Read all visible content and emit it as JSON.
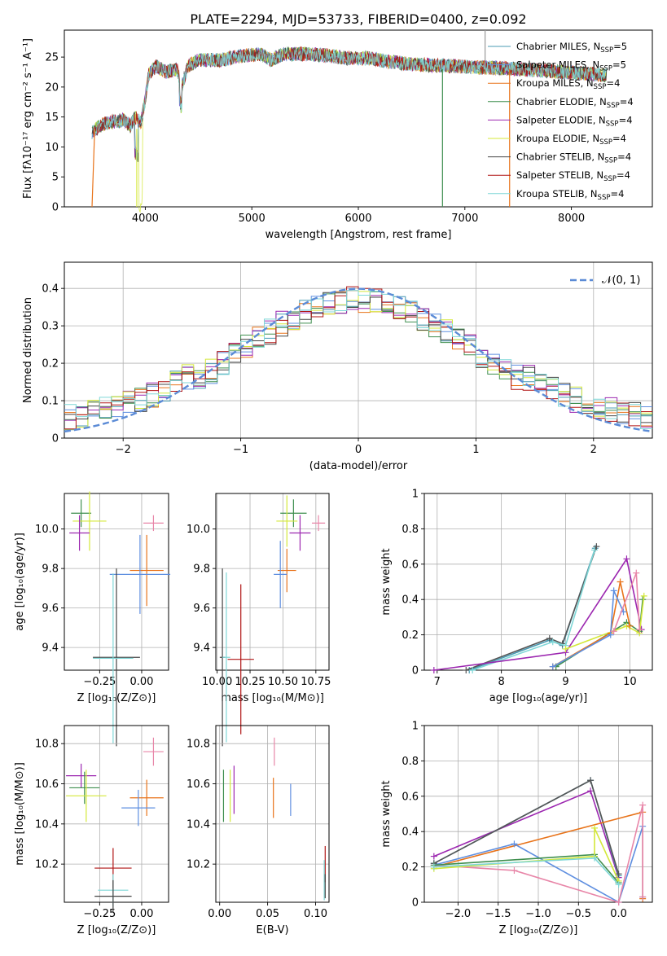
{
  "chart_data": [
    {
      "id": "spectrum",
      "type": "line",
      "title": "PLATE=2294, MJD=53733, FIBERID=0400, z=0.092",
      "xlabel": "wavelength [Angstrom, rest frame]",
      "ylabel": "Flux [fλ10⁻¹⁷ erg cm⁻² s⁻¹ A⁻¹]",
      "xlim": [
        3240,
        8760
      ],
      "ylim": [
        0,
        29.5
      ],
      "xticks": [
        4000,
        5000,
        6000,
        7000,
        8000
      ],
      "yticks": [
        0,
        5,
        10,
        15,
        20,
        25
      ],
      "legend_position": "upper right",
      "legend": [
        {
          "label": "Chabrier MILES, N_SSP=5",
          "color": "#4a9bb3"
        },
        {
          "label": "Salpeter MILES, N_SSP=5",
          "color": "#5f8fe0"
        },
        {
          "label": "Kroupa MILES, N_SSP=4",
          "color": "#e8731a"
        },
        {
          "label": "Chabrier ELODIE, N_SSP=4",
          "color": "#3f8f4f"
        },
        {
          "label": "Salpeter ELODIE, N_SSP=4",
          "color": "#9c27b0"
        },
        {
          "label": "Kroupa ELODIE, N_SSP=4",
          "color": "#d4e83a"
        },
        {
          "label": "Chabrier STELIB, N_SSP=4",
          "color": "#444444"
        },
        {
          "label": "Salpeter STELIB, N_SSP=4",
          "color": "#b01515"
        },
        {
          "label": "Kroupa STELIB, N_SSP=4",
          "color": "#7fd7d7"
        }
      ],
      "shape_points": [
        [
          3500,
          12.5
        ],
        [
          3600,
          13.8
        ],
        [
          3700,
          14.2
        ],
        [
          3800,
          14.5
        ],
        [
          3860,
          13.5
        ],
        [
          3900,
          15
        ],
        [
          3960,
          14
        ],
        [
          4000,
          18
        ],
        [
          4030,
          22
        ],
        [
          4100,
          23.5
        ],
        [
          4200,
          22.5
        ],
        [
          4300,
          23
        ],
        [
          4340,
          20
        ],
        [
          4400,
          23.5
        ],
        [
          4500,
          24.5
        ],
        [
          4700,
          24.5
        ],
        [
          4900,
          25.2
        ],
        [
          5100,
          25.5
        ],
        [
          5175,
          24.5
        ],
        [
          5300,
          25.5
        ],
        [
          5500,
          25.5
        ],
        [
          5700,
          25.3
        ],
        [
          5900,
          24.8
        ],
        [
          6100,
          24.8
        ],
        [
          6300,
          24.2
        ],
        [
          6500,
          23.8
        ],
        [
          6700,
          23.6
        ],
        [
          6900,
          23.5
        ],
        [
          7100,
          23.3
        ],
        [
          7300,
          23.2
        ],
        [
          7500,
          23
        ],
        [
          7700,
          22.8
        ],
        [
          7900,
          22.5
        ],
        [
          8100,
          22.3
        ],
        [
          8300,
          22
        ]
      ]
    },
    {
      "id": "residuals",
      "type": "line",
      "xlabel": "(data-model)/error",
      "ylabel": "Normed distribution",
      "xlim": [
        -2.5,
        2.5
      ],
      "ylim": [
        0,
        0.47
      ],
      "xticks": [
        -2,
        -1,
        0,
        1,
        2
      ],
      "yticks": [
        0.0,
        0.1,
        0.2,
        0.3,
        0.4
      ],
      "legend_label": "𝒩(0, 1)",
      "legend_position": "upper right",
      "gaussian": {
        "mu": 0,
        "sigma": 1,
        "color": "#5b8bd6"
      }
    },
    {
      "id": "age_vs_Z",
      "type": "scatter",
      "xlabel": "Z [log₁₀(Z/Z⊙)]",
      "ylabel": "age  [log₁₀(age/yr)]",
      "xlim": [
        -0.46,
        0.16
      ],
      "ylim": [
        9.285,
        10.18
      ],
      "xticks": [
        -0.25,
        0.0
      ],
      "xticklabels": [
        "−0.25",
        "0.00"
      ],
      "yticks": [
        9.4,
        9.6,
        9.8,
        10.0
      ],
      "errorbars": [
        {
          "x": -0.36,
          "xerr": 0.06,
          "y": 10.08,
          "yerr": 0.07,
          "color": "#3f8f4f"
        },
        {
          "x": -0.31,
          "xerr": 0.1,
          "y": 10.04,
          "yerr": 0.15,
          "color": "#d4e83a"
        },
        {
          "x": -0.37,
          "xerr": 0.06,
          "y": 9.98,
          "yerr": 0.09,
          "color": "#9c27b0"
        },
        {
          "x": 0.07,
          "xerr": 0.06,
          "y": 10.03,
          "yerr": 0.04,
          "color": "#e886a8"
        },
        {
          "x": 0.03,
          "xerr": 0.1,
          "y": 9.79,
          "yerr": 0.18,
          "color": "#e8731a"
        },
        {
          "x": -0.01,
          "xerr": 0.18,
          "y": 9.77,
          "yerr": 0.2,
          "color": "#5f8fe0"
        },
        {
          "x": -0.15,
          "xerr": 0.14,
          "y": 9.35,
          "yerr": 0.45,
          "color": "#444444"
        },
        {
          "x": -0.17,
          "xerr": 0.12,
          "y": 9.345,
          "yerr": 0.43,
          "color": "#7fd7d7"
        }
      ]
    },
    {
      "id": "age_vs_mass",
      "type": "scatter",
      "xlabel": "mass [log₁₀(M/M⊙)]",
      "xlim": [
        9.99,
        10.85
      ],
      "ylim": [
        9.285,
        10.18
      ],
      "xticks": [
        10.0,
        10.25,
        10.5,
        10.75
      ],
      "xticklabels": [
        "10.00",
        "10.25",
        "10.50",
        "10.75"
      ],
      "yticks": [
        9.4,
        9.6,
        9.8,
        10.0
      ],
      "errorbars": [
        {
          "x": 10.58,
          "xerr": 0.1,
          "y": 10.08,
          "yerr": 0.07,
          "color": "#3f8f4f"
        },
        {
          "x": 10.53,
          "xerr": 0.08,
          "y": 10.04,
          "yerr": 0.13,
          "color": "#d4e83a"
        },
        {
          "x": 10.63,
          "xerr": 0.08,
          "y": 9.98,
          "yerr": 0.09,
          "color": "#9c27b0"
        },
        {
          "x": 10.77,
          "xerr": 0.05,
          "y": 10.03,
          "yerr": 0.04,
          "color": "#e886a8"
        },
        {
          "x": 10.53,
          "xerr": 0.07,
          "y": 9.79,
          "yerr": 0.11,
          "color": "#e8731a"
        },
        {
          "x": 10.48,
          "xerr": 0.05,
          "y": 9.77,
          "yerr": 0.17,
          "color": "#5f8fe0"
        },
        {
          "x": 10.04,
          "xerr": 0.02,
          "y": 9.35,
          "yerr": 0.45,
          "color": "#444444"
        },
        {
          "x": 10.07,
          "xerr": 0.03,
          "y": 9.35,
          "yerr": 0.43,
          "color": "#7fd7d7"
        },
        {
          "x": 10.18,
          "xerr": 0.1,
          "y": 9.34,
          "yerr": 0.38,
          "color": "#b01515"
        }
      ]
    },
    {
      "id": "weight_vs_age",
      "type": "line",
      "xlabel": "age  [log₁₀(age/yr)]",
      "ylabel": "mass weight",
      "xlim": [
        6.8,
        10.35
      ],
      "ylim": [
        0,
        1
      ],
      "xticks": [
        7,
        8,
        9,
        10
      ],
      "yticks": [
        0.0,
        0.2,
        0.4,
        0.6,
        0.8,
        1.0
      ],
      "series": [
        {
          "color": "#4a9bb3",
          "x": [
            7.5,
            8.75,
            8.95,
            9.46
          ],
          "y": [
            0.0,
            0.17,
            0.14,
            0.69
          ]
        },
        {
          "color": "#555555",
          "x": [
            7.45,
            8.75,
            8.95,
            9.48
          ],
          "y": [
            0.0,
            0.18,
            0.15,
            0.7
          ]
        },
        {
          "color": "#7fd7d7",
          "x": [
            7.55,
            8.8,
            9.0,
            9.45
          ],
          "y": [
            0.0,
            0.16,
            0.14,
            0.68
          ]
        },
        {
          "color": "#9c27b0",
          "x": [
            6.95,
            9.0,
            9.95,
            10.18
          ],
          "y": [
            0.0,
            0.1,
            0.63,
            0.23
          ]
        },
        {
          "color": "#3f8f4f",
          "x": [
            8.85,
            9.95,
            10.15,
            10.2
          ],
          "y": [
            0.02,
            0.27,
            0.22,
            0.4
          ]
        },
        {
          "color": "#d4e83a",
          "x": [
            9.0,
            9.95,
            10.15,
            10.22
          ],
          "y": [
            0.12,
            0.25,
            0.21,
            0.42
          ]
        },
        {
          "color": "#e8731a",
          "x": [
            8.8,
            9.7,
            9.85,
            10.0
          ],
          "y": [
            0.02,
            0.21,
            0.5,
            0.25
          ]
        },
        {
          "color": "#5f8fe0",
          "x": [
            8.8,
            9.7,
            9.75,
            9.9
          ],
          "y": [
            0.02,
            0.2,
            0.45,
            0.33
          ]
        },
        {
          "color": "#e886a8",
          "x": [
            9.75,
            10.1,
            10.15
          ],
          "y": [
            0.22,
            0.55,
            0.23
          ]
        }
      ]
    },
    {
      "id": "mass_vs_Z",
      "type": "scatter",
      "xlabel": "Z [log₁₀(Z/Z⊙)]",
      "ylabel": "mass [log₁₀(M/M⊙)]",
      "xlim": [
        -0.46,
        0.16
      ],
      "ylim": [
        10.01,
        10.89
      ],
      "xticks": [
        -0.25,
        0.0
      ],
      "xticklabels": [
        "−0.25",
        "0.00"
      ],
      "yticks": [
        10.2,
        10.4,
        10.6,
        10.8
      ],
      "errorbars": [
        {
          "x": -0.36,
          "xerr": 0.09,
          "y": 10.64,
          "yerr": 0.06,
          "color": "#9c27b0"
        },
        {
          "x": -0.34,
          "xerr": 0.09,
          "y": 10.58,
          "yerr": 0.08,
          "color": "#3f8f4f"
        },
        {
          "x": -0.33,
          "xerr": 0.12,
          "y": 10.54,
          "yerr": 0.13,
          "color": "#d4e83a"
        },
        {
          "x": 0.07,
          "xerr": 0.06,
          "y": 10.76,
          "yerr": 0.07,
          "color": "#e886a8"
        },
        {
          "x": 0.03,
          "xerr": 0.1,
          "y": 10.53,
          "yerr": 0.09,
          "color": "#e8731a"
        },
        {
          "x": -0.02,
          "xerr": 0.1,
          "y": 10.48,
          "yerr": 0.09,
          "color": "#5f8fe0"
        },
        {
          "x": -0.17,
          "xerr": 0.11,
          "y": 10.18,
          "yerr": 0.1,
          "color": "#b01515"
        },
        {
          "x": -0.17,
          "xerr": 0.09,
          "y": 10.07,
          "yerr": 0.08,
          "color": "#7fd7d7"
        },
        {
          "x": -0.17,
          "xerr": 0.11,
          "y": 10.04,
          "yerr": 0.08,
          "color": "#444444"
        }
      ]
    },
    {
      "id": "mass_vs_EBV",
      "type": "scatter",
      "xlabel": "E(B-V)",
      "xlim": [
        -0.004,
        0.114
      ],
      "ylim": [
        10.01,
        10.89
      ],
      "xticks": [
        0.0,
        0.05,
        0.1
      ],
      "xticklabels": [
        "0.00",
        "0.05",
        "0.10"
      ],
      "yticks": [
        10.2,
        10.4,
        10.6,
        10.8
      ],
      "errorbars": [
        {
          "x": 0.004,
          "y": 10.54,
          "yerr": 0.13,
          "color": "#3f8f4f"
        },
        {
          "x": 0.011,
          "y": 10.54,
          "yerr": 0.13,
          "color": "#d4e83a"
        },
        {
          "x": 0.015,
          "y": 10.57,
          "yerr": 0.12,
          "color": "#9c27b0"
        },
        {
          "x": 0.057,
          "y": 10.76,
          "yerr": 0.07,
          "color": "#e886a8"
        },
        {
          "x": 0.056,
          "y": 10.53,
          "yerr": 0.1,
          "color": "#e8731a"
        },
        {
          "x": 0.074,
          "y": 10.52,
          "yerr": 0.08,
          "color": "#5f8fe0"
        },
        {
          "x": 0.11,
          "y": 10.2,
          "yerr": 0.09,
          "color": "#b01515"
        },
        {
          "x": 0.109,
          "y": 10.12,
          "yerr": 0.1,
          "color": "#7fd7d7"
        },
        {
          "x": 0.11,
          "y": 10.09,
          "yerr": 0.06,
          "color": "#444444"
        }
      ]
    },
    {
      "id": "weight_vs_Z",
      "type": "line",
      "xlabel": "Z [log₁₀(Z/Z⊙)]",
      "ylabel": "mass weight",
      "xlim": [
        -2.42,
        0.42
      ],
      "ylim": [
        0,
        1
      ],
      "xticks": [
        -2.0,
        -1.5,
        -1.0,
        -0.5,
        0.0
      ],
      "xticklabels": [
        "−2.0",
        "−1.5",
        "−1.0",
        "−0.5",
        "0.0"
      ],
      "yticks": [
        0.0,
        0.2,
        0.4,
        0.6,
        0.8,
        1.0
      ],
      "series": [
        {
          "color": "#9c27b0",
          "x": [
            -2.3,
            -0.35,
            0.0
          ],
          "y": [
            0.26,
            0.63,
            0.14
          ]
        },
        {
          "color": "#4a9bb3",
          "x": [
            -2.3,
            -0.35,
            0.0
          ],
          "y": [
            0.22,
            0.69,
            0.15
          ]
        },
        {
          "color": "#555555",
          "x": [
            -2.3,
            -0.35,
            0.0
          ],
          "y": [
            0.22,
            0.69,
            0.16
          ]
        },
        {
          "color": "#e8731a",
          "x": [
            -2.3,
            0.3,
            0.3
          ],
          "y": [
            0.2,
            0.51,
            0.02
          ]
        },
        {
          "color": "#5f8fe0",
          "x": [
            -2.3,
            -1.3,
            0.0,
            0.3,
            0.3
          ],
          "y": [
            0.21,
            0.33,
            0.0,
            0.43,
            0.03
          ]
        },
        {
          "color": "#e886a8",
          "x": [
            -2.3,
            -1.3,
            0.0,
            0.3,
            0.3
          ],
          "y": [
            0.21,
            0.18,
            0.0,
            0.55,
            0.03
          ]
        },
        {
          "color": "#3f8f4f",
          "x": [
            -2.3,
            -0.3,
            0.0
          ],
          "y": [
            0.21,
            0.27,
            0.11
          ]
        },
        {
          "color": "#d4e83a",
          "x": [
            -2.3,
            -0.3,
            -0.3,
            0.0
          ],
          "y": [
            0.19,
            0.26,
            0.42,
            0.12
          ]
        },
        {
          "color": "#7fd7d7",
          "x": [
            -2.3,
            -0.3,
            0.0
          ],
          "y": [
            0.2,
            0.25,
            0.1
          ]
        }
      ]
    }
  ]
}
